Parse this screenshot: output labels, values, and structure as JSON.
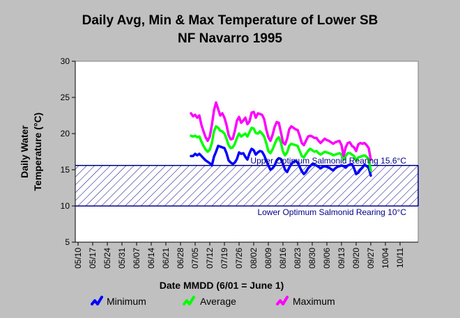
{
  "chart_data": {
    "type": "line",
    "title_line1": "Daily Avg, Min & Max Temperature of Lower SB",
    "title_line2": "NF Navarro 1995",
    "xlabel": "Date MMDD (6/01 = June 1)",
    "ylabel_line1": "Daily Water",
    "ylabel_line2": "Temperature (°C)",
    "ylim": [
      5,
      30
    ],
    "yticks": [
      "5",
      "10",
      "15",
      "20",
      "25",
      "30"
    ],
    "x_tick_labels": [
      "05/10",
      "05/17",
      "05/24",
      "05/31",
      "06/07",
      "06/14",
      "06/21",
      "06/28",
      "07/05",
      "07/12",
      "07/19",
      "07/26",
      "08/02",
      "08/09",
      "08/16",
      "08/23",
      "08/30",
      "09/06",
      "09/13",
      "09/20",
      "09/27",
      "10/04",
      "10/11"
    ],
    "x_start": "05/10",
    "x_tick_interval_days": 7,
    "grid": false,
    "legend_position": "bottom",
    "band": {
      "lower": 10,
      "upper": 15.6,
      "upper_label": "Upper Optimum Salmonid Rearing 15.6°C",
      "lower_label": "Lower Optimum Salmonid Rearing 10°C",
      "color": "#00008b"
    },
    "x_dates": [
      "07/03",
      "07/04",
      "07/05",
      "07/06",
      "07/07",
      "07/08",
      "07/09",
      "07/10",
      "07/11",
      "07/12",
      "07/13",
      "07/14",
      "07/15",
      "07/16",
      "07/17",
      "07/18",
      "07/19",
      "07/20",
      "07/21",
      "07/22",
      "07/23",
      "07/24",
      "07/25",
      "07/26",
      "07/27",
      "07/28",
      "07/29",
      "07/30",
      "07/31",
      "08/01",
      "08/02",
      "08/03",
      "08/04",
      "08/05",
      "08/06",
      "08/07",
      "08/08",
      "08/09",
      "08/10",
      "08/11",
      "08/12",
      "08/13",
      "08/14",
      "08/15",
      "08/16",
      "08/17",
      "08/18",
      "08/19",
      "08/20",
      "08/21",
      "08/22",
      "08/23",
      "08/24",
      "08/25",
      "08/26",
      "08/27",
      "08/28",
      "08/29",
      "08/30",
      "08/31",
      "09/01",
      "09/02",
      "09/03",
      "09/04",
      "09/05",
      "09/06",
      "09/07",
      "09/08",
      "09/09",
      "09/10",
      "09/11",
      "09/12",
      "09/13",
      "09/14",
      "09/15",
      "09/16",
      "09/17",
      "09/18",
      "09/19",
      "09/20",
      "09/21",
      "09/22",
      "09/23",
      "09/24",
      "09/25",
      "09/26",
      "09/27"
    ],
    "series": [
      {
        "name": "Minimum",
        "color": "#0000ff",
        "values": [
          16.9,
          16.9,
          17.2,
          17.0,
          17.2,
          16.9,
          16.6,
          16.3,
          16.1,
          15.9,
          15.6,
          16.8,
          17.5,
          18.3,
          18.2,
          18.1,
          18.0,
          17.3,
          16.3,
          16.0,
          15.8,
          16.0,
          16.5,
          17.4,
          17.2,
          17.3,
          16.8,
          16.4,
          17.3,
          17.9,
          17.7,
          17.1,
          17.4,
          17.6,
          17.5,
          17.0,
          16.3,
          15.6,
          15.0,
          15.2,
          15.6,
          16.3,
          16.6,
          16.5,
          15.8,
          15.0,
          14.7,
          15.3,
          15.8,
          16.1,
          16.2,
          16.0,
          15.4,
          14.8,
          14.4,
          14.7,
          15.2,
          15.5,
          15.8,
          15.7,
          15.6,
          15.4,
          15.2,
          15.4,
          15.5,
          15.4,
          15.3,
          15.1,
          14.9,
          15.2,
          15.4,
          15.5,
          15.6,
          15.5,
          15.3,
          15.6,
          15.7,
          15.8,
          15.2,
          14.4,
          14.6,
          15.0,
          15.3,
          15.7,
          15.5,
          15.3,
          14.2
        ]
      },
      {
        "name": "Average",
        "color": "#00ff00",
        "values": [
          19.7,
          19.6,
          19.7,
          19.5,
          19.6,
          18.9,
          18.3,
          17.8,
          17.5,
          17.8,
          18.7,
          20.3,
          21.0,
          20.8,
          20.4,
          20.3,
          20.0,
          19.3,
          18.4,
          18.0,
          18.1,
          18.6,
          19.4,
          20.0,
          19.6,
          19.8,
          20.0,
          19.6,
          20.2,
          20.8,
          20.7,
          20.1,
          20.0,
          20.3,
          20.0,
          19.6,
          18.7,
          17.6,
          17.3,
          17.8,
          18.5,
          19.2,
          19.5,
          18.8,
          17.5,
          17.0,
          17.4,
          18.3,
          18.6,
          18.5,
          18.4,
          18.3,
          17.6,
          16.9,
          16.7,
          17.2,
          17.6,
          17.9,
          17.7,
          17.5,
          17.6,
          17.3,
          17.1,
          17.3,
          17.5,
          17.4,
          17.3,
          17.2,
          17.0,
          17.1,
          17.2,
          17.3,
          17.1,
          16.4,
          16.9,
          17.3,
          17.3,
          17.1,
          16.9,
          16.3,
          16.7,
          16.8,
          16.9,
          17.0,
          16.8,
          16.4,
          14.9
        ]
      },
      {
        "name": "Maximum",
        "color": "#ff00ff",
        "values": [
          22.8,
          22.4,
          22.6,
          22.2,
          22.5,
          21.2,
          20.3,
          19.5,
          19.0,
          19.6,
          21.2,
          23.2,
          24.3,
          23.4,
          22.5,
          22.8,
          22.2,
          21.2,
          19.8,
          19.2,
          19.3,
          20.4,
          21.8,
          22.3,
          21.5,
          21.8,
          22.2,
          21.3,
          21.7,
          22.9,
          23.0,
          22.2,
          22.8,
          22.7,
          22.6,
          22.0,
          20.6,
          19.5,
          19.0,
          19.8,
          20.9,
          21.6,
          21.5,
          20.2,
          18.8,
          18.5,
          19.3,
          20.6,
          21.0,
          20.8,
          20.6,
          20.5,
          19.7,
          18.7,
          18.4,
          19.0,
          19.6,
          19.7,
          19.6,
          19.4,
          19.4,
          19.0,
          18.7,
          19.0,
          19.3,
          19.1,
          19.0,
          18.8,
          18.6,
          18.8,
          18.9,
          19.0,
          18.4,
          16.9,
          18.1,
          18.7,
          18.8,
          18.3,
          18.1,
          17.6,
          18.5,
          18.7,
          18.6,
          18.7,
          18.4,
          18.0,
          16.4
        ]
      }
    ]
  }
}
